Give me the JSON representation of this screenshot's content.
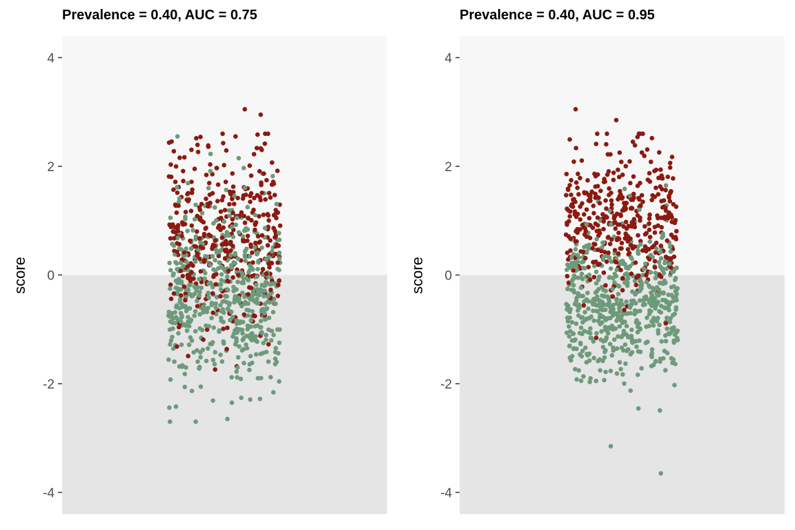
{
  "chart_data": [
    {
      "type": "scatter",
      "title": "Prevalence = 0.40, AUC = 0.75",
      "ylabel": "score",
      "xlabel": "",
      "ylim": [
        -4.4,
        4.4
      ],
      "yticks": [
        -4,
        -2,
        0,
        2,
        4
      ],
      "tick_labels": [
        "-4",
        "-2",
        "0",
        "2",
        "4"
      ],
      "background_bands": [
        {
          "from": 0,
          "to": 4.4,
          "color": "#f7f7f7"
        },
        {
          "from": -4.4,
          "to": 0,
          "color": "#e5e5e5"
        }
      ],
      "series": [
        {
          "color": "#8b1a10",
          "n_points": 400,
          "mean": 0.6,
          "sd": 0.9
        },
        {
          "color": "#6e9a7c",
          "n_points": 600,
          "mean": -0.35,
          "sd": 0.85
        }
      ],
      "max_points": [
        {
          "score": 3.05,
          "color": "#8b1a10"
        },
        {
          "score": 2.95,
          "color": "#8b1a10"
        },
        {
          "score": 2.55,
          "color": "#6e9a7c"
        },
        {
          "score": -2.65,
          "color": "#6e9a7c"
        }
      ]
    },
    {
      "type": "scatter",
      "title": "Prevalence = 0.40, AUC = 0.95",
      "ylabel": "score",
      "xlabel": "",
      "ylim": [
        -4.4,
        4.4
      ],
      "yticks": [
        -4,
        -2,
        0,
        2,
        4
      ],
      "tick_labels": [
        "-4",
        "-2",
        "0",
        "2",
        "4"
      ],
      "background_bands": [
        {
          "from": 0,
          "to": 4.4,
          "color": "#f7f7f7"
        },
        {
          "from": -4.4,
          "to": 0,
          "color": "#e5e5e5"
        }
      ],
      "series": [
        {
          "color": "#8b1a10",
          "n_points": 400,
          "mean": 0.95,
          "sd": 0.65
        },
        {
          "color": "#6e9a7c",
          "n_points": 600,
          "mean": -0.5,
          "sd": 0.7
        }
      ],
      "max_points": [
        {
          "score": 3.05,
          "color": "#8b1a10"
        },
        {
          "score": 2.85,
          "color": "#8b1a10"
        },
        {
          "score": -3.15,
          "color": "#6e9a7c"
        },
        {
          "score": -3.65,
          "color": "#6e9a7c"
        }
      ]
    }
  ]
}
